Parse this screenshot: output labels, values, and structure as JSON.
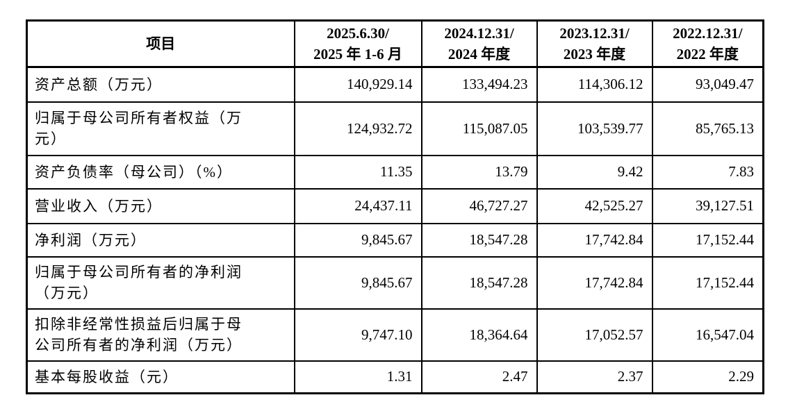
{
  "table": {
    "header": {
      "item_label": "项目",
      "periods": [
        {
          "line1": "2025.6.30/",
          "line2": "2025 年 1-6 月"
        },
        {
          "line1": "2024.12.31/",
          "line2": "2024 年度"
        },
        {
          "line1": "2023.12.31/",
          "line2": "2023 年度"
        },
        {
          "line1": "2022.12.31/",
          "line2": "2022 年度"
        }
      ]
    },
    "rows": [
      {
        "label_lines": [
          "资产总额（万元）"
        ],
        "values": [
          "140,929.14",
          "133,494.23",
          "114,306.12",
          "93,049.47"
        ]
      },
      {
        "label_lines": [
          "归属于母公司所有者权益（万",
          "元）"
        ],
        "values": [
          "124,932.72",
          "115,087.05",
          "103,539.77",
          "85,765.13"
        ]
      },
      {
        "label_lines": [
          "资产负债率（母公司）（%）"
        ],
        "values": [
          "11.35",
          "13.79",
          "9.42",
          "7.83"
        ]
      },
      {
        "label_lines": [
          "营业收入（万元）"
        ],
        "values": [
          "24,437.11",
          "46,727.27",
          "42,525.27",
          "39,127.51"
        ]
      },
      {
        "label_lines": [
          "净利润（万元）"
        ],
        "values": [
          "9,845.67",
          "18,547.28",
          "17,742.84",
          "17,152.44"
        ]
      },
      {
        "label_lines": [
          "归属于母公司所有者的净利润",
          "（万元）"
        ],
        "values": [
          "9,845.67",
          "18,547.28",
          "17,742.84",
          "17,152.44"
        ]
      },
      {
        "label_lines": [
          "扣除非经常性损益后归属于母",
          "公司所有者的净利润（万元）"
        ],
        "values": [
          "9,747.10",
          "18,364.64",
          "17,052.57",
          "16,547.04"
        ]
      },
      {
        "label_lines": [
          "基本每股收益（元）"
        ],
        "values": [
          "1.31",
          "2.47",
          "2.37",
          "2.29"
        ]
      }
    ]
  },
  "colors": {
    "border": "#000000",
    "text": "#000000",
    "background": "#ffffff"
  }
}
